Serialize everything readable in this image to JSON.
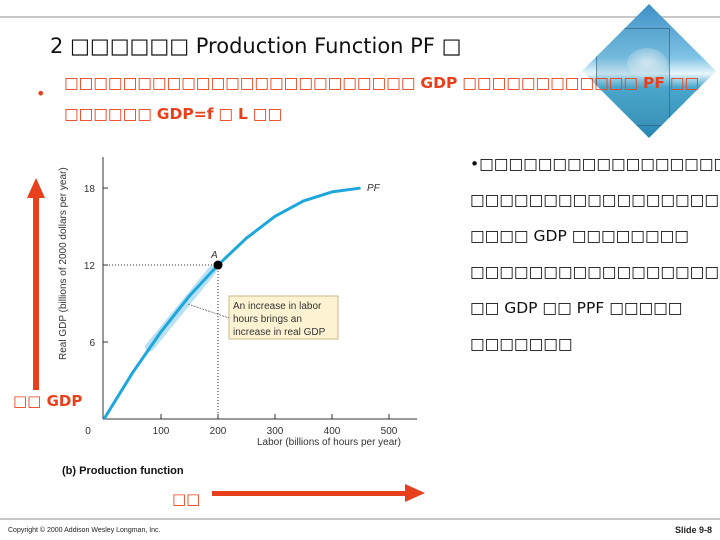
{
  "title": "2 □□□□□□ Production Function PF □",
  "bullet": {
    "line1_a": "□□□□□□□□□□□□□□□□□□□□□□□□ ",
    "line1_b": "GDP",
    "line1_c": " □□□□□□□□□□□□ ",
    "line1_d": "PF",
    "line1_e": " □□",
    "line2_a": "□□□□□□ ",
    "line2_b": "GDP=f",
    "line2_c": " □ ",
    "line2_d": "L",
    "line2_e": " □□"
  },
  "right_text": [
    "□□□□□□□□□□□□□□□□□",
    "□□□□□□□□□□□□□□□□□□□",
    "□□□□ GDP □□□□□□□□",
    "□□□□□□□□□□□□□□□□□□□",
    "□□ GDP □□ PPF □□□□□",
    "□□□□□□□"
  ],
  "arrow_labels": {
    "y": "□□ GDP",
    "x": "□□"
  },
  "footer": {
    "copyright": "Copyright © 2000 Addison Wesley Longman, Inc.",
    "slide": "Slide 9-8"
  },
  "chart_data": {
    "type": "line",
    "title": "(b) Production function",
    "xlabel": "Labor (billions of hours per year)",
    "ylabel": "Real GDP (billions of 2000 dollars per year)",
    "xlim": [
      0,
      550
    ],
    "ylim": [
      0,
      20
    ],
    "xticks": [
      "0",
      "100",
      "200",
      "300",
      "400",
      "500"
    ],
    "yticks": [
      "6",
      "12",
      "18"
    ],
    "series": [
      {
        "name": "PF",
        "x": [
          0,
          50,
          100,
          150,
          200,
          250,
          300,
          350,
          400,
          450
        ],
        "y": [
          0,
          3.6,
          6.8,
          9.6,
          12,
          14.1,
          15.8,
          17.0,
          17.7,
          18
        ]
      }
    ],
    "point": {
      "label": "A",
      "x": 200,
      "y": 12
    },
    "annotation": [
      "An increase in labor",
      "hours brings an",
      "increase in real GDP"
    ],
    "colors": {
      "curve": "#1ea7dc",
      "arrows": "#e8401c",
      "note_bg": "#fdf3d3"
    }
  }
}
